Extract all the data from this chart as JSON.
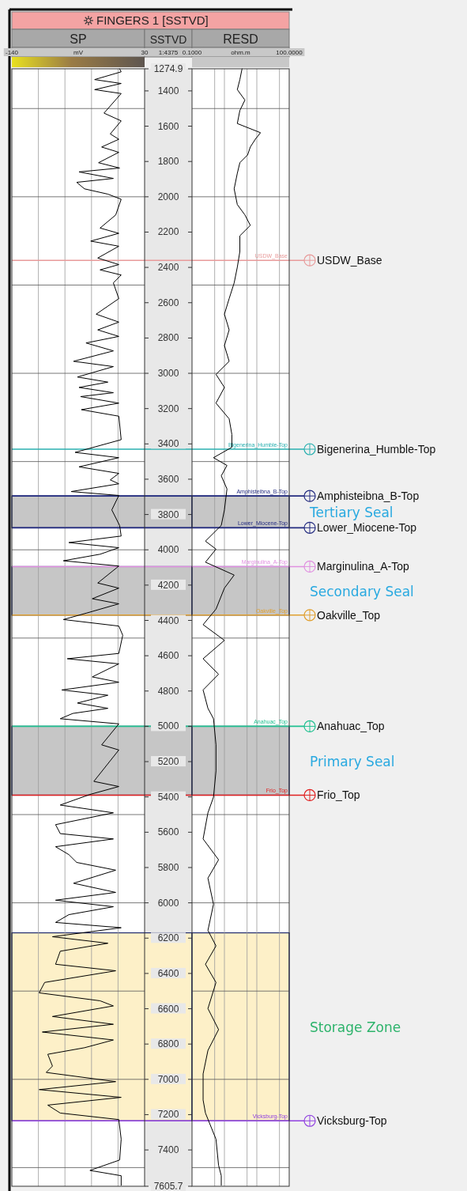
{
  "chart_data": [
    {
      "type": "line",
      "title": "FINGERS 1 [SSTVD]",
      "xlabel": "SP",
      "ylabel": "SSTVD",
      "annotations": [
        "mV",
        "1:4375"
      ],
      "xlim": [
        -140,
        30
      ],
      "xticks": [
        -140,
        {
          "value": -106,
          "label": null
        },
        {
          "value": -72,
          "label": null
        },
        {
          "value": -38,
          "label": null
        },
        {
          "value": -4,
          "label": null
        },
        30
      ],
      "ylim": [
        7605.7,
        1274.9
      ],
      "yticks": [
        1274.9,
        1400,
        1600,
        1800,
        2000,
        2200,
        2400,
        2600,
        2800,
        3000,
        3200,
        3400,
        3600,
        3800,
        4000,
        4200,
        4400,
        4600,
        4800,
        5000,
        5200,
        5400,
        5600,
        5800,
        6000,
        6200,
        6400,
        6600,
        6800,
        7000,
        7200,
        7400,
        7605.7,
        {
          "value": 1500,
          "label": null
        },
        {
          "value": 2000,
          "label": null
        },
        {
          "value": 2500,
          "label": null
        },
        {
          "value": 3000,
          "label": null
        },
        {
          "value": 3500,
          "label": null
        },
        {
          "value": 4000,
          "label": null
        },
        {
          "value": 4500,
          "label": null
        },
        {
          "value": 5000,
          "label": null
        },
        {
          "value": 5500,
          "label": null
        },
        {
          "value": 6000,
          "label": null
        },
        {
          "value": 6500,
          "label": null
        },
        {
          "value": 7000,
          "label": null
        },
        {
          "value": 7500,
          "label": null
        }
      ],
      "grid": true,
      "series": [
        {
          "color": "#000000",
          "x": [
            -2,
            0,
            -34,
            0,
            -34,
            0,
            -22,
            0,
            -14,
            -3,
            -25,
            -3,
            -29,
            -2,
            -54,
            -10,
            -57,
            -47,
            -17,
            0,
            -7,
            -27,
            -3,
            -39,
            -3,
            -30,
            -3,
            -27,
            0,
            -10,
            -3,
            -32,
            -3,
            -30,
            -3,
            -45,
            -10,
            -61,
            -10,
            -56,
            -17,
            -54,
            -10,
            -52,
            -3,
            -51,
            -3,
            0,
            -59,
            -3,
            -54,
            -3,
            -14,
            -3,
            -64,
            -3,
            -12,
            -2,
            0,
            -67,
            -3,
            -27,
            -74,
            -3,
            -30,
            -3,
            -37,
            -3,
            -44,
            -74,
            -3,
            2,
            -3,
            -69,
            -3,
            -37,
            -3,
            -76,
            -17,
            -56,
            -17,
            -62,
            -78,
            -3,
            -25,
            -3,
            -35,
            -3,
            -40,
            -78,
            -10,
            -84,
            -78,
            -10,
            -84,
            -67,
            -57,
            -7,
            -61,
            -7,
            -84,
            -10,
            -67,
            -84,
            0,
            -88,
            -17,
            -78,
            -84,
            -7,
            -98,
            -105,
            -27,
            -10,
            -88,
            -10,
            -101,
            -10,
            -47,
            -94,
            -88,
            -96,
            -7,
            -105,
            0,
            -94,
            -78,
            -3,
            0,
            -2,
            -40,
            0,
            0
          ],
          "values": [
            1275,
            1292,
            1336,
            1358,
            1393,
            1415,
            1526,
            1570,
            1644,
            1674,
            1718,
            1748,
            1807,
            1837,
            1859,
            1896,
            1918,
            1955,
            1985,
            2014,
            2103,
            2177,
            2207,
            2251,
            2280,
            2347,
            2384,
            2414,
            2443,
            2488,
            2577,
            2665,
            2710,
            2754,
            2791,
            2828,
            2873,
            2932,
            2962,
            3021,
            3050,
            3080,
            3110,
            3132,
            3169,
            3206,
            3243,
            3376,
            3448,
            3478,
            3530,
            3567,
            3604,
            3626,
            3670,
            3692,
            3774,
            3862,
            3922,
            3959,
            3988,
            4025,
            4062,
            4092,
            4188,
            4217,
            4277,
            4306,
            4358,
            4395,
            4432,
            4484,
            4587,
            4617,
            4646,
            4720,
            4750,
            4794,
            4824,
            4868,
            4898,
            4927,
            4957,
            4986,
            5105,
            5134,
            5312,
            5341,
            5386,
            5446,
            5490,
            5557,
            5608,
            5638,
            5682,
            5727,
            5771,
            5815,
            5889,
            5941,
            5985,
            6022,
            6067,
            6111,
            6141,
            6192,
            6229,
            6274,
            6348,
            6385,
            6451,
            6510,
            6555,
            6584,
            6644,
            6688,
            6732,
            6777,
            6821,
            6858,
            6925,
            6961,
            7013,
            7058,
            7102,
            7146,
            7191,
            7228,
            7339,
            7457,
            7516,
            7546,
            7600
          ]
        }
      ],
      "bands": [
        {
          "axis": "y",
          "from": 3695,
          "to": 3875,
          "color": "#c6c6c6"
        },
        {
          "axis": "y",
          "from": 4095,
          "to": 4370,
          "color": "#c6c6c6"
        },
        {
          "axis": "y",
          "from": 5000,
          "to": 5390,
          "color": "#c6c6c6"
        },
        {
          "axis": "y",
          "from": 6170,
          "to": 7235,
          "color": "#fdf0c8"
        }
      ],
      "ref_lines": [
        {
          "axis": "y",
          "value": 2360,
          "color": "#e89a9a"
        },
        {
          "axis": "y",
          "value": 3430,
          "color": "#2ab0b0"
        },
        {
          "axis": "y",
          "value": 3695,
          "color": "#242c80"
        },
        {
          "axis": "y",
          "value": 3875,
          "color": "#242c80"
        },
        {
          "axis": "y",
          "value": 4095,
          "color": "#e090e0"
        },
        {
          "axis": "y",
          "value": 4370,
          "color": "#e0a030"
        },
        {
          "axis": "y",
          "value": 5000,
          "color": "#20c090"
        },
        {
          "axis": "y",
          "value": 5390,
          "color": "#e02020"
        },
        {
          "axis": "y",
          "value": 7235,
          "color": "#9040e0"
        }
      ]
    },
    {
      "type": "line",
      "xlabel": "RESD",
      "annotations": [
        "ohm.m"
      ],
      "log": "x",
      "tick_labels": "x",
      "xlim": [
        0.1,
        100
      ],
      "xticks": [
        {
          "value": 0.1,
          "label": "0.1000"
        },
        {
          "value": 0.5,
          "label": null
        },
        {
          "value": 1,
          "label": null
        },
        {
          "value": 5,
          "label": null
        },
        {
          "value": 10,
          "label": null
        },
        {
          "value": 50,
          "label": null
        },
        {
          "value": 100,
          "label": "100.0000"
        }
      ],
      "ylim": [
        7605.7,
        1274.9
      ],
      "yticks": [
        {
          "value": 1500,
          "label": null
        },
        {
          "value": 2000,
          "label": null
        },
        {
          "value": 2500,
          "label": null
        },
        {
          "value": 3000,
          "label": null
        },
        {
          "value": 3500,
          "label": null
        },
        {
          "value": 4000,
          "label": null
        },
        {
          "value": 4500,
          "label": null
        },
        {
          "value": 5000,
          "label": null
        },
        {
          "value": 5500,
          "label": null
        },
        {
          "value": 6000,
          "label": null
        },
        {
          "value": 6500,
          "label": null
        },
        {
          "value": 7000,
          "label": null
        },
        {
          "value": 7500,
          "label": null
        }
      ],
      "grid": true,
      "series": [
        {
          "color": "#000000",
          "x": [
            3.5,
            3,
            2.5,
            4.3,
            3,
            2.5,
            13,
            9,
            6.3,
            5.2,
            3,
            2.5,
            2,
            2.5,
            4.3,
            6.3,
            3,
            3,
            2.5,
            2,
            1.4,
            1,
            1.4,
            1,
            1.4,
            0.55,
            1,
            0.55,
            1.4,
            1.7,
            1.7,
            0.46,
            1.2,
            0.8,
            1.2,
            1,
            0.8,
            0.26,
            0.55,
            0.26,
            2,
            1,
            0.55,
            0.22,
            1,
            0.22,
            0.66,
            0.22,
            0.31,
            0.46,
            0.55,
            0.55,
            0.46,
            0.31,
            0.22,
            0.66,
            0.31,
            0.46,
            0.31,
            0.55,
            0.26,
            0.55,
            0.31,
            0.66,
            0.31,
            0.22,
            0.22,
            0.26,
            0.55,
            0.66,
            0.8,
            0.8
          ],
          "values": [
            1275,
            1336,
            1393,
            1452,
            1511,
            1585,
            1637,
            1674,
            1718,
            1763,
            1807,
            1867,
            1955,
            2044,
            2103,
            2162,
            2221,
            2310,
            2399,
            2488,
            2577,
            2665,
            2754,
            2843,
            2932,
            3006,
            3080,
            3169,
            3258,
            3347,
            3419,
            3478,
            3522,
            3581,
            3655,
            3774,
            3862,
            3951,
            3996,
            4070,
            4143,
            4217,
            4336,
            4424,
            4513,
            4617,
            4705,
            4794,
            4898,
            4957,
            5105,
            5253,
            5401,
            5490,
            5638,
            5756,
            5860,
            6008,
            6156,
            6244,
            6348,
            6451,
            6599,
            6718,
            6836,
            6969,
            7117,
            7191,
            7339,
            7487,
            7546,
            7600
          ]
        }
      ],
      "bands": [
        {
          "axis": "y",
          "from": 3695,
          "to": 3875,
          "color": "#c6c6c6",
          "label": "Tertiary Seal"
        },
        {
          "axis": "y",
          "from": 4095,
          "to": 4370,
          "color": "#c6c6c6",
          "label": "Secondary Seal"
        },
        {
          "axis": "y",
          "from": 5000,
          "to": 5390,
          "color": "#c6c6c6",
          "label": "Primary Seal"
        },
        {
          "axis": "y",
          "from": 6170,
          "to": 7235,
          "color": "#fdf0c8",
          "label": "Storage Zone"
        }
      ],
      "ref_lines": [
        {
          "axis": "y",
          "value": 2360,
          "color": "#e89a9a",
          "label": "USDW_Base"
        },
        {
          "axis": "y",
          "value": 3430,
          "color": "#2ab0b0",
          "label": "Bigenerina_Humble-Top"
        },
        {
          "axis": "y",
          "value": 3695,
          "color": "#242c80",
          "label": "Amphisteibna_B-Top"
        },
        {
          "axis": "y",
          "value": 3875,
          "color": "#242c80",
          "label": "Lower_Miocene-Top"
        },
        {
          "axis": "y",
          "value": 4095,
          "color": "#e090e0",
          "label": "Marginulina_A-Top"
        },
        {
          "axis": "y",
          "value": 4370,
          "color": "#e0a030",
          "label": "Oakville_Top"
        },
        {
          "axis": "y",
          "value": 5000,
          "color": "#20c090",
          "label": "Anahuac_Top"
        },
        {
          "axis": "y",
          "value": 5390,
          "color": "#e02020",
          "label": "Frio_Top"
        },
        {
          "axis": "y",
          "value": 7235,
          "color": "#9040e0",
          "label": "Vicksburg-Top"
        }
      ]
    }
  ]
}
